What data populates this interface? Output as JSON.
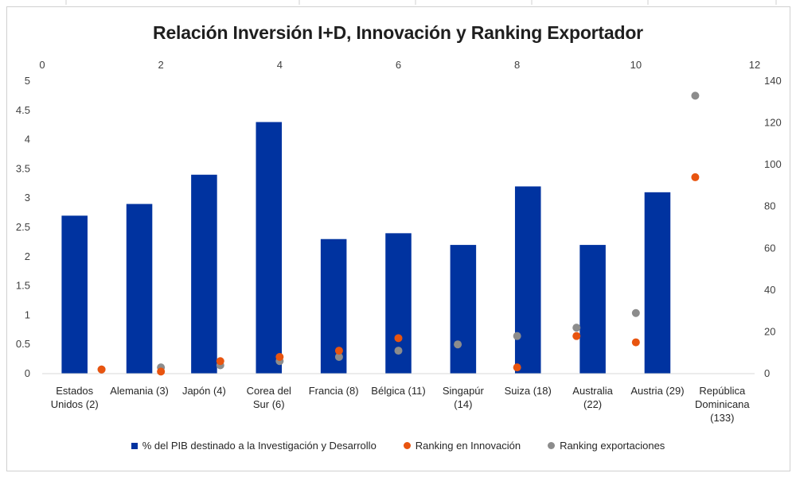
{
  "chart_data": {
    "type": "bar",
    "title": "Relación Inversión I+D, Innovación y Ranking Exportador",
    "categories": [
      "Estados Unidos (2)",
      "Alemania (3)",
      "Japón (4)",
      "Corea del Sur (6)",
      "Francia (8)",
      "Bélgica (11)",
      "Singapúr (14)",
      "Suiza (18)",
      "Australia (22)",
      "Austria (29)",
      "República Dominicana (133)"
    ],
    "category_lines": [
      [
        "Estados",
        "Unidos (2)"
      ],
      [
        "Alemania (3)"
      ],
      [
        "Japón (4)"
      ],
      [
        "Corea del",
        "Sur (6)"
      ],
      [
        "Francia (8)"
      ],
      [
        "Bélgica (11)"
      ],
      [
        "Singapúr",
        "(14)"
      ],
      [
        "Suiza (18)"
      ],
      [
        "Australia",
        "(22)"
      ],
      [
        "Austria (29)"
      ],
      [
        "República",
        "Dominicana",
        "(133)"
      ]
    ],
    "series": [
      {
        "name": "% del PIB destinado a la Investigación y Desarrollo",
        "type": "bar",
        "axis": "primary",
        "values": [
          2.7,
          2.9,
          3.4,
          4.3,
          2.3,
          2.4,
          2.2,
          3.2,
          2.2,
          3.1,
          null
        ],
        "color": "#0033a0"
      },
      {
        "name": "Ranking en Innovación",
        "type": "scatter",
        "axis": "secondary",
        "x": [
          1,
          2,
          3,
          4,
          5,
          6,
          8,
          9,
          10,
          11
        ],
        "y": [
          2,
          1,
          6,
          8,
          11,
          17,
          3,
          18,
          15,
          94
        ],
        "color": "#e8540f"
      },
      {
        "name": "Ranking exportaciones",
        "type": "scatter",
        "axis": "secondary",
        "x": [
          1,
          2,
          3,
          4,
          5,
          6,
          7,
          8,
          9,
          10,
          11
        ],
        "y": [
          2,
          3,
          4,
          6,
          8,
          11,
          14,
          18,
          22,
          29,
          133
        ],
        "color": "#8c8c8c"
      }
    ],
    "y_left": {
      "min": 0,
      "max": 5,
      "ticks": [
        "0",
        "0.5",
        "1",
        "1.5",
        "2",
        "2.5",
        "3",
        "3.5",
        "4",
        "4.5",
        "5"
      ]
    },
    "y_right": {
      "min": 0,
      "max": 140,
      "ticks": [
        "0",
        "20",
        "40",
        "60",
        "80",
        "100",
        "120",
        "140"
      ]
    },
    "x_top": {
      "min": 0,
      "max": 12,
      "ticks": [
        "0",
        "2",
        "4",
        "6",
        "8",
        "10",
        "12"
      ]
    },
    "grid": false,
    "legend_position": "bottom"
  }
}
